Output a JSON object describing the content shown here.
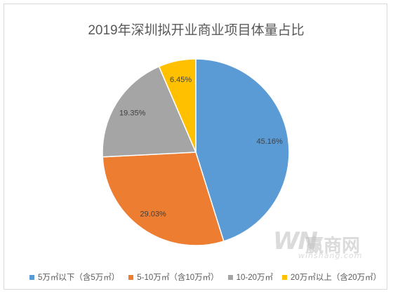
{
  "chart_data": {
    "type": "pie",
    "title": "2019年深圳拟开业商业项目体量占比",
    "slices": [
      {
        "label": "5万㎡以下（含5万㎡）",
        "value": 45.16,
        "value_label": "45.16%",
        "color": "#5b9bd5"
      },
      {
        "label": "5-10万㎡（含10万㎡）",
        "value": 29.03,
        "value_label": "29.03%",
        "color": "#ed7d31"
      },
      {
        "label": "10-20万㎡",
        "value": 19.35,
        "value_label": "19.35%",
        "color": "#a5a5a5"
      },
      {
        "label": "20万㎡以上（含20万㎡）",
        "value": 6.45,
        "value_label": "6.45%",
        "color": "#ffc000"
      }
    ],
    "legend_position": "bottom",
    "start_angle": "12 o'clock",
    "direction": "clockwise"
  },
  "watermark": {
    "logo": "WN",
    "brand": "赢商网",
    "url": "winshang.com"
  }
}
